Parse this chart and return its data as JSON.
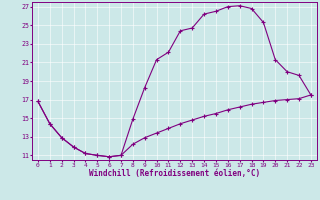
{
  "xlabel": "Windchill (Refroidissement éolien,°C)",
  "bg_color": "#cce8e8",
  "line_color": "#800080",
  "xlim": [
    -0.5,
    23.5
  ],
  "ylim": [
    10.5,
    27.5
  ],
  "xticks": [
    0,
    1,
    2,
    3,
    4,
    5,
    6,
    7,
    8,
    9,
    10,
    11,
    12,
    13,
    14,
    15,
    16,
    17,
    18,
    19,
    20,
    21,
    22,
    23
  ],
  "yticks": [
    11,
    13,
    15,
    17,
    19,
    21,
    23,
    25,
    27
  ],
  "upper_x": [
    0,
    1,
    2,
    3,
    4,
    5,
    6,
    7,
    8,
    9,
    10,
    11,
    12,
    13,
    14,
    15,
    16,
    17,
    18,
    19,
    20,
    21,
    22,
    23
  ],
  "upper_y": [
    16.8,
    14.4,
    12.9,
    11.9,
    11.2,
    11.0,
    10.85,
    11.0,
    14.9,
    18.3,
    21.3,
    22.1,
    24.4,
    24.7,
    26.2,
    26.5,
    27.0,
    27.1,
    26.8,
    25.3,
    21.3,
    20.0,
    19.6,
    17.5
  ],
  "lower_x": [
    0,
    1,
    2,
    3,
    4,
    5,
    6,
    7,
    8,
    9,
    10,
    11,
    12,
    13,
    14,
    15,
    16,
    17,
    18,
    19,
    20,
    21,
    22,
    23
  ],
  "lower_y": [
    16.8,
    14.4,
    12.9,
    11.9,
    11.2,
    11.0,
    10.85,
    11.0,
    12.2,
    12.9,
    13.4,
    13.9,
    14.4,
    14.8,
    15.2,
    15.5,
    15.9,
    16.2,
    16.5,
    16.7,
    16.9,
    17.0,
    17.1,
    17.5
  ],
  "grid_color": "#ffffff",
  "spine_color": "#800080",
  "tick_color": "#800080",
  "label_fontsize": 4.5,
  "xlabel_fontsize": 5.5
}
